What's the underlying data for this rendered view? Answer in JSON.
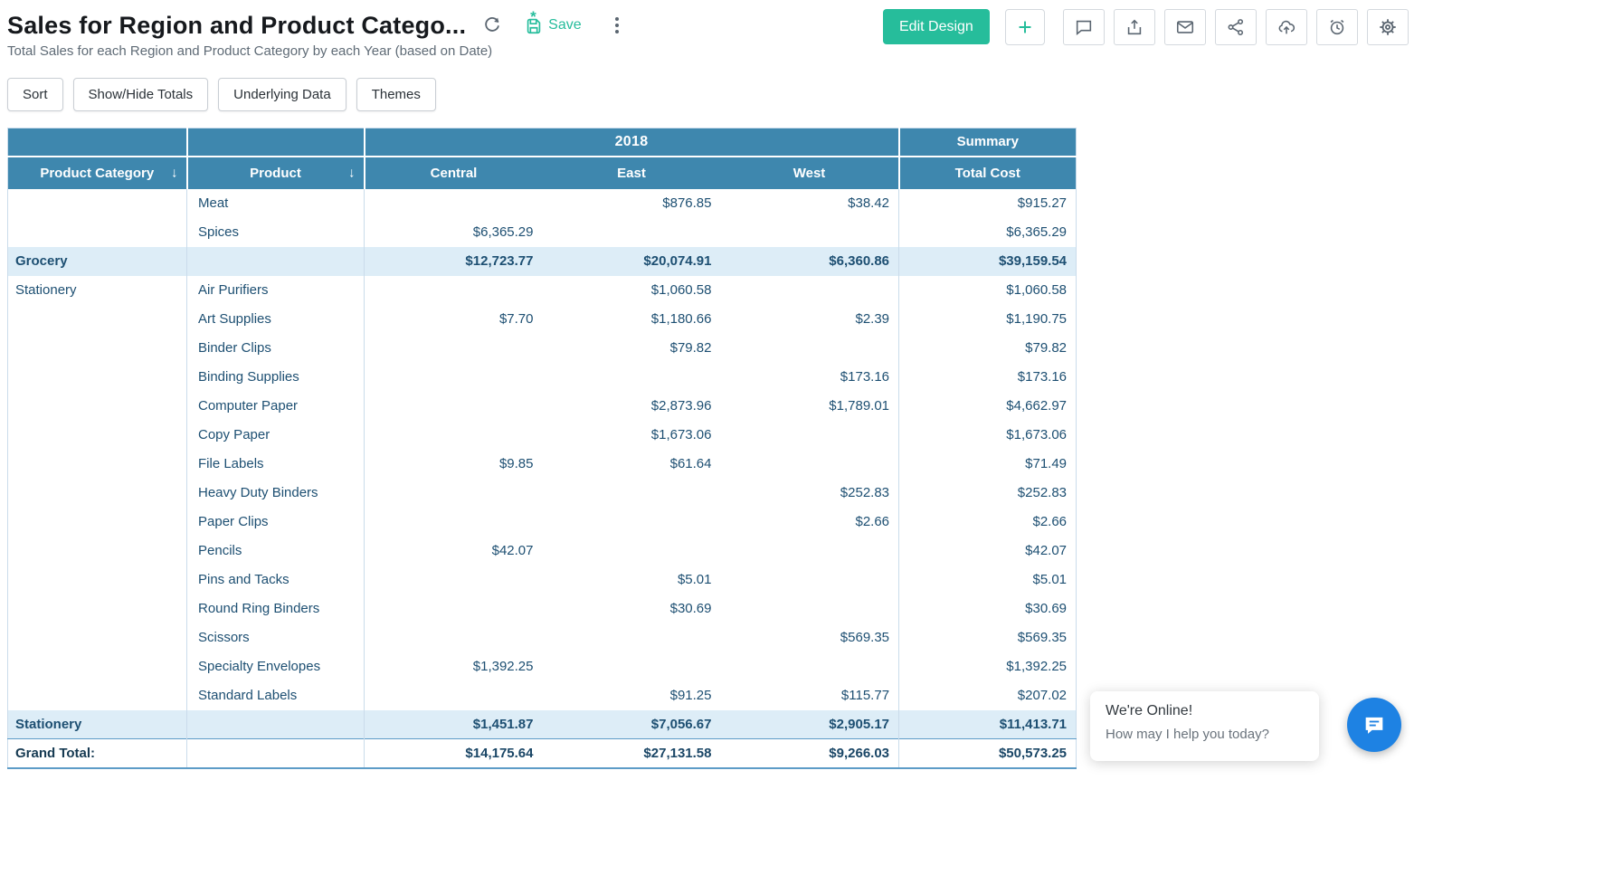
{
  "header": {
    "title": "Sales for Region and Product Catego...",
    "subtitle": "Total Sales for each Region and Product Category by each Year (based on Date)",
    "save_label": "Save",
    "edit_design_label": "Edit Design",
    "icons": [
      "refresh-icon",
      "save-icon",
      "more-options-icon",
      "plus-icon",
      "comment-icon",
      "export-icon",
      "mail-icon",
      "share-icon",
      "cloud-upload-icon",
      "alarm-icon",
      "settings-icon"
    ]
  },
  "toolbar": {
    "buttons": [
      "Sort",
      "Show/Hide Totals",
      "Underlying Data",
      "Themes"
    ]
  },
  "table": {
    "year_header": "2018",
    "summary_header": "Summary",
    "columns": [
      "Product Category",
      "Product",
      "Central",
      "East",
      "West",
      "Total Cost"
    ],
    "sort_icon": "↓",
    "rows": [
      {
        "type": "data",
        "category": "",
        "product": "Meat",
        "central": "",
        "east": "$876.85",
        "west": "$38.42",
        "total": "$915.27"
      },
      {
        "type": "data",
        "category": "",
        "product": "Spices",
        "central": "$6,365.29",
        "east": "",
        "west": "",
        "total": "$6,365.29"
      },
      {
        "type": "subtotal",
        "category": "Grocery",
        "product": "",
        "central": "$12,723.77",
        "east": "$20,074.91",
        "west": "$6,360.86",
        "total": "$39,159.54"
      },
      {
        "type": "data",
        "category": "Stationery",
        "product": "Air Purifiers",
        "central": "",
        "east": "$1,060.58",
        "west": "",
        "total": "$1,060.58"
      },
      {
        "type": "data",
        "category": "",
        "product": "Art Supplies",
        "central": "$7.70",
        "east": "$1,180.66",
        "west": "$2.39",
        "total": "$1,190.75"
      },
      {
        "type": "data",
        "category": "",
        "product": "Binder Clips",
        "central": "",
        "east": "$79.82",
        "west": "",
        "total": "$79.82"
      },
      {
        "type": "data",
        "category": "",
        "product": "Binding Supplies",
        "central": "",
        "east": "",
        "west": "$173.16",
        "total": "$173.16"
      },
      {
        "type": "data",
        "category": "",
        "product": "Computer Paper",
        "central": "",
        "east": "$2,873.96",
        "west": "$1,789.01",
        "total": "$4,662.97"
      },
      {
        "type": "data",
        "category": "",
        "product": "Copy Paper",
        "central": "",
        "east": "$1,673.06",
        "west": "",
        "total": "$1,673.06"
      },
      {
        "type": "data",
        "category": "",
        "product": "File Labels",
        "central": "$9.85",
        "east": "$61.64",
        "west": "",
        "total": "$71.49"
      },
      {
        "type": "data",
        "category": "",
        "product": "Heavy Duty Binders",
        "central": "",
        "east": "",
        "west": "$252.83",
        "total": "$252.83"
      },
      {
        "type": "data",
        "category": "",
        "product": "Paper Clips",
        "central": "",
        "east": "",
        "west": "$2.66",
        "total": "$2.66"
      },
      {
        "type": "data",
        "category": "",
        "product": "Pencils",
        "central": "$42.07",
        "east": "",
        "west": "",
        "total": "$42.07"
      },
      {
        "type": "data",
        "category": "",
        "product": "Pins and Tacks",
        "central": "",
        "east": "$5.01",
        "west": "",
        "total": "$5.01"
      },
      {
        "type": "data",
        "category": "",
        "product": "Round Ring Binders",
        "central": "",
        "east": "$30.69",
        "west": "",
        "total": "$30.69"
      },
      {
        "type": "data",
        "category": "",
        "product": "Scissors",
        "central": "",
        "east": "",
        "west": "$569.35",
        "total": "$569.35"
      },
      {
        "type": "data",
        "category": "",
        "product": "Specialty Envelopes",
        "central": "$1,392.25",
        "east": "",
        "west": "",
        "total": "$1,392.25"
      },
      {
        "type": "data",
        "category": "",
        "product": "Standard Labels",
        "central": "",
        "east": "$91.25",
        "west": "$115.77",
        "total": "$207.02"
      },
      {
        "type": "subtotal",
        "category": "Stationery",
        "product": "",
        "central": "$1,451.87",
        "east": "$7,056.67",
        "west": "$2,905.17",
        "total": "$11,413.71"
      },
      {
        "type": "grand",
        "category": "Grand Total:",
        "product": "",
        "central": "$14,175.64",
        "east": "$27,131.58",
        "west": "$9,266.03",
        "total": "$50,573.25"
      }
    ]
  },
  "chat": {
    "line1": "We're Online!",
    "line2": "How may I help you today?"
  },
  "colors": {
    "header_blue": "#3e87ae",
    "subtotal_bg": "#ddedf7",
    "accent_teal": "#26bd9b",
    "chat_blue": "#1e82e3",
    "table_text": "#1d4f72"
  }
}
